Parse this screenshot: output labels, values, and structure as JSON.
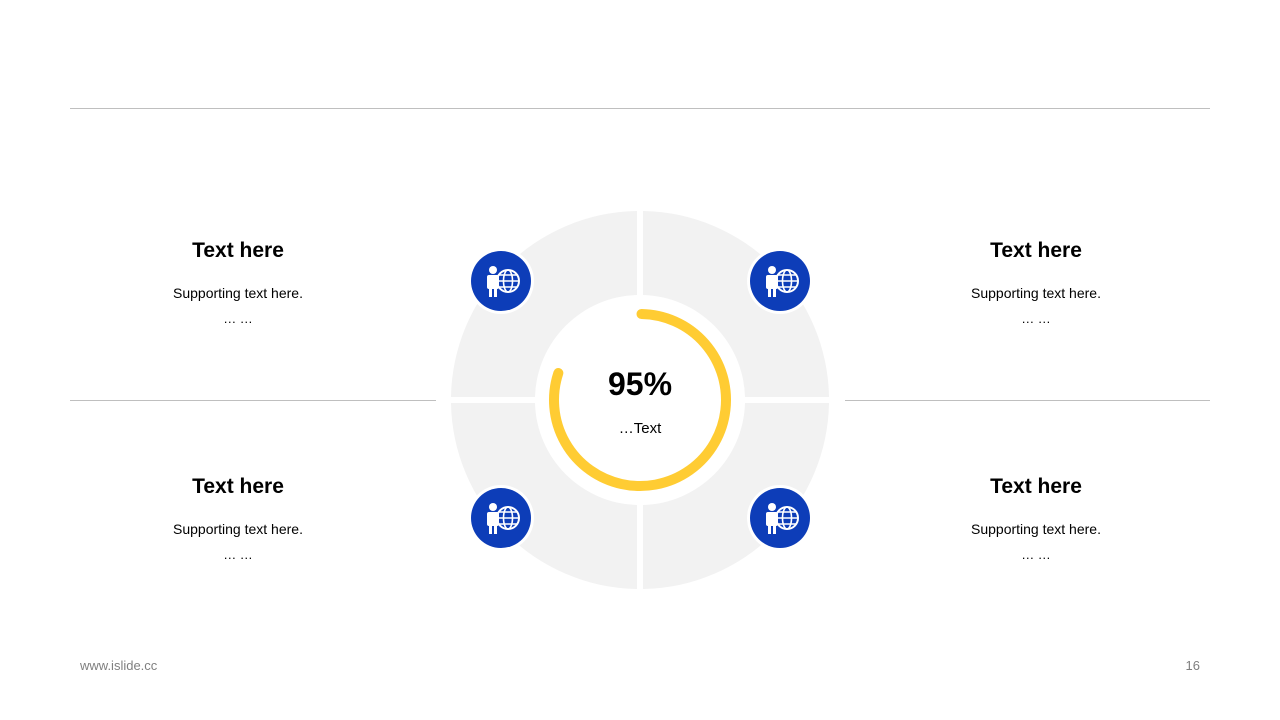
{
  "colors": {
    "accent": "#ffcc33",
    "icon_bg": "#0d3db8",
    "quadrant": "#f2f2f2",
    "line": "#bfbfbf"
  },
  "blocks": [
    {
      "title": "Text here",
      "sub": "Supporting  text here.",
      "dots": "… …"
    },
    {
      "title": "Text here",
      "sub": "Supporting  text here.",
      "dots": "… …"
    },
    {
      "title": "Text here",
      "sub": "Supporting  text here.",
      "dots": "… …"
    },
    {
      "title": "Text here",
      "sub": "Supporting  text here.",
      "dots": "… …"
    }
  ],
  "center": {
    "value": "95%",
    "progress": 0.95,
    "label": "…Text"
  },
  "icons": [
    "person-globe-icon",
    "person-globe-icon",
    "person-globe-icon",
    "person-globe-icon"
  ],
  "footer": {
    "website": "www.islide.cc",
    "page_number": "16"
  }
}
